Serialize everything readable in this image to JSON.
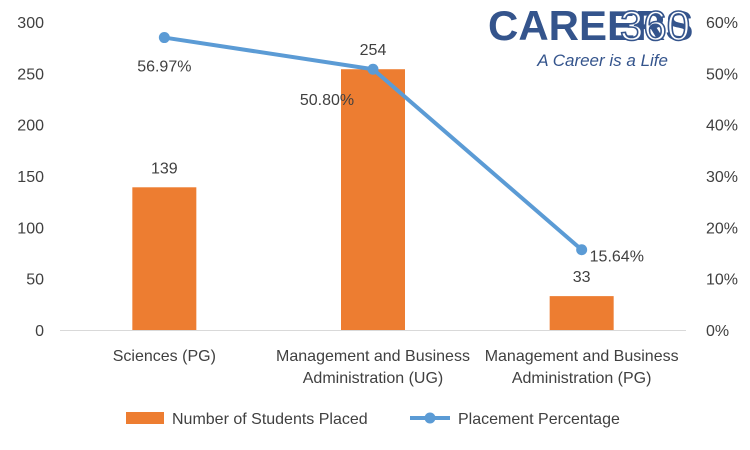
{
  "chart_data": {
    "type": "bar",
    "categories": [
      [
        "Sciences (PG)"
      ],
      [
        "Management and Business",
        "Administration (UG)"
      ],
      [
        "Management and Business",
        "Administration (PG)"
      ]
    ],
    "series": [
      {
        "name": "Number of Students Placed",
        "type": "bar",
        "axis": "left",
        "values": [
          139,
          254,
          33
        ],
        "labels": [
          "139",
          "254",
          "33"
        ],
        "color": "#ed7d31"
      },
      {
        "name": "Placement Percentage",
        "type": "line",
        "axis": "right",
        "values": [
          56.97,
          50.8,
          15.64
        ],
        "labels": [
          "56.97%",
          "50.80%",
          "15.64%"
        ],
        "color": "#5b9bd5"
      }
    ],
    "y_left": {
      "ylim": [
        0,
        300
      ],
      "ticks": [
        0,
        50,
        100,
        150,
        200,
        250,
        300
      ],
      "tick_labels": [
        "0",
        "50",
        "100",
        "150",
        "200",
        "250",
        "300"
      ]
    },
    "y_right": {
      "ylim": [
        0,
        60
      ],
      "ticks": [
        0,
        10,
        20,
        30,
        40,
        50,
        60
      ],
      "tick_labels": [
        "0%",
        "10%",
        "20%",
        "30%",
        "40%",
        "50%",
        "60%"
      ]
    },
    "grid": false,
    "legend": {
      "position": "bottom"
    }
  },
  "logo": {
    "word": "CAREERS",
    "number": "360",
    "tagline": "A Career is a Life"
  }
}
